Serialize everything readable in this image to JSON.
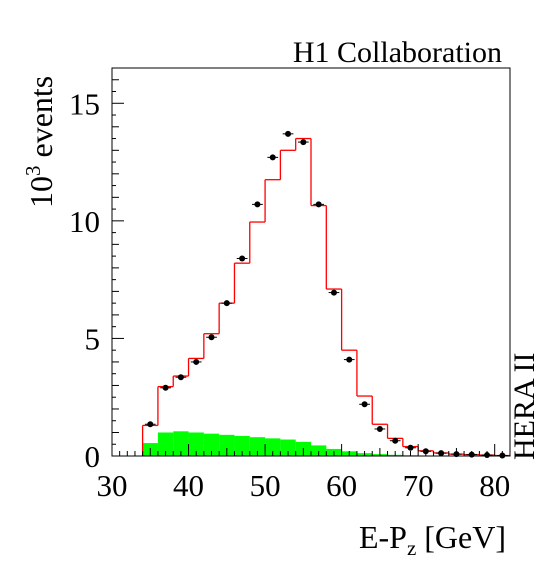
{
  "chart_data": {
    "type": "histogram",
    "title": "H1 Collaboration",
    "side_label": "HERA II",
    "xlabel": {
      "main": "E-P",
      "sub": "z",
      "unit": " [GeV]"
    },
    "ylabel": {
      "base": "10",
      "exp": "3",
      "rest": " events"
    },
    "xlim": [
      30,
      82
    ],
    "ylim": [
      0,
      16.5
    ],
    "x_ticks": [
      30,
      40,
      50,
      60,
      70,
      80
    ],
    "y_ticks": [
      0,
      5,
      10,
      15
    ],
    "bin_width": 2,
    "bin_starts": [
      34,
      36,
      38,
      40,
      42,
      44,
      46,
      48,
      50,
      52,
      54,
      56,
      58,
      60,
      62,
      64,
      66,
      68,
      70,
      72,
      74,
      76,
      78,
      80
    ],
    "data_points": [
      1.35,
      2.9,
      3.35,
      4.0,
      5.05,
      6.5,
      8.4,
      10.7,
      12.7,
      13.7,
      13.35,
      10.7,
      6.95,
      4.1,
      2.2,
      1.15,
      0.65,
      0.35,
      0.2,
      0.12,
      0.08,
      0.06,
      0.04,
      0.02
    ],
    "mc_total": [
      1.3,
      2.95,
      3.4,
      4.15,
      5.2,
      6.5,
      8.2,
      9.95,
      11.75,
      13.0,
      13.5,
      10.65,
      7.1,
      4.5,
      2.55,
      1.35,
      0.75,
      0.4,
      0.22,
      0.13,
      0.08,
      0.06,
      0.04,
      0.02
    ],
    "background": [
      0.55,
      1.0,
      1.05,
      1.0,
      0.95,
      0.9,
      0.85,
      0.8,
      0.75,
      0.7,
      0.6,
      0.45,
      0.3,
      0.2,
      0.12,
      0.08,
      0.05,
      0.03,
      0.02,
      0.01,
      0.01,
      0.0,
      0.0,
      0.0
    ],
    "colors": {
      "mc_total": "#ff0000",
      "background": "#00ff00",
      "data": "#000000",
      "axes": "#000000"
    }
  }
}
